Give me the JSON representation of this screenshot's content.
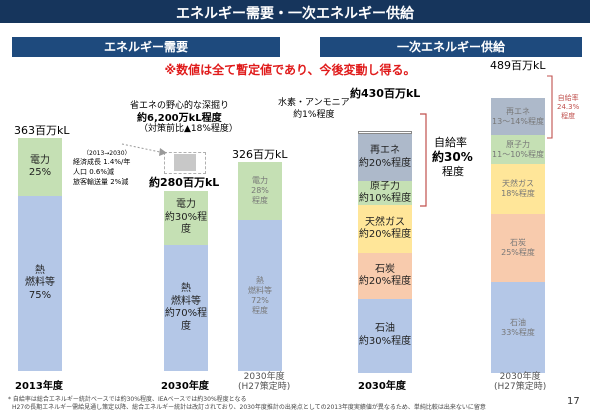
{
  "header": {
    "title": "エネルギー需要・一次エネルギー供給"
  },
  "sections": {
    "left": "エネルギー需要",
    "right": "一次エネルギー供給"
  },
  "warning": "※数値は全て暫定値であり、今後変動し得る。",
  "chart_data": [
    {
      "type": "bar",
      "stacked": true,
      "categories": [
        "2013年度",
        "2030年度",
        "2030年度\n(H27策定時)"
      ],
      "totals": [
        "363百万kL",
        "約280百万kL",
        "326百万kL"
      ],
      "series": [
        {
          "name": "熱 燃料等",
          "values": [
            75,
            70,
            72
          ],
          "labels": [
            "熱\n燃料等\n75%",
            "熱\n燃料等\n約70%程度",
            "熱\n燃料等\n72%\n程度"
          ]
        },
        {
          "name": "電力",
          "values": [
            25,
            30,
            28
          ],
          "labels": [
            "電力\n25%",
            "電力\n約30%程度",
            "電力\n28%\n程度"
          ]
        }
      ],
      "annotations": {
        "savings_title": "省エネの野心的な深掘り",
        "savings_value": "約6,200万kL程度",
        "savings_note": "（対策前比▲18%程度）",
        "growth_period": "（2013→2030）",
        "growth_lines": [
          "経済成長 1.4%/年",
          "人口 0.6%減",
          "旅客輸送量 2%減"
        ]
      }
    },
    {
      "type": "bar",
      "stacked": true,
      "categories": [
        "2030年度",
        "2030年度\n(H27策定時)"
      ],
      "totals": [
        "約430百万kL",
        "489百万kL"
      ],
      "series": [
        {
          "name": "石油",
          "values": [
            31,
            33
          ],
          "labels": [
            "石油\n約30%程度",
            "石油\n33%程度"
          ]
        },
        {
          "name": "石炭",
          "values": [
            19,
            25
          ],
          "labels": [
            "石炭\n約20%程度",
            "石炭\n25%程度"
          ]
        },
        {
          "name": "天然ガス",
          "values": [
            20,
            18
          ],
          "labels": [
            "天然ガス\n約20%程度",
            "天然ガス\n18%程度"
          ]
        },
        {
          "name": "原子力",
          "values": [
            10,
            10.5
          ],
          "labels": [
            "原子力\n約10%程度",
            "原子力\n11～10%程度"
          ]
        },
        {
          "name": "再エネ",
          "values": [
            20,
            13.5
          ],
          "labels": [
            "再エネ\n約20%程度",
            "再エネ\n13～14%程度"
          ]
        },
        {
          "name": "水素・アンモニア",
          "values": [
            1,
            0
          ],
          "labels": [
            "",
            ""
          ]
        }
      ],
      "annotations": {
        "hydrogen_label": "水素・アンモニア\n約1%程度",
        "self_sufficiency_label": "自給率",
        "self_sufficiency_value": "約30%",
        "self_sufficiency_suffix": "程度",
        "self_sufficiency_h27": "自給率\n24.3%\n程度"
      }
    }
  ],
  "colors": {
    "header": "#16355c",
    "section": "#1e4a7d",
    "heat": "#b4c7e7",
    "electric": "#c5e0b4",
    "oil": "#b4c7e7",
    "coal": "#f8cbad",
    "gas": "#ffe699",
    "nuclear": "#c5e0b4",
    "renewable": "#adb9ca",
    "bracket": "#c0504d"
  },
  "footnotes": [
    "* 自給率は総合エネルギー統計ベースでは約30%程度、IEAベースでは約30%程度となる",
    "H27の長期エネルギー需給見通し策定以降、総合エネルギー統計は改訂されており、2030年度推計の出発点としての2013年度実績値が異なるため、単純比較は出来ないに留意"
  ],
  "page_number": "17"
}
